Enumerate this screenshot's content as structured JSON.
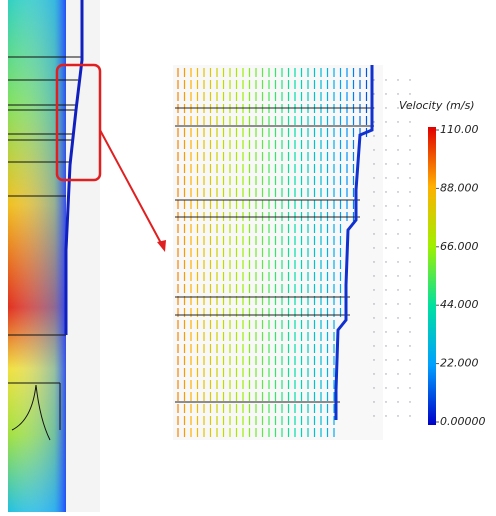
{
  "colorbar": {
    "title": "Velocity (m/s)",
    "ticks": [
      {
        "value": 110,
        "label": "110.00"
      },
      {
        "value": 88,
        "label": "88.000"
      },
      {
        "value": 66,
        "label": "66.000"
      },
      {
        "value": 44,
        "label": "44.000"
      },
      {
        "value": 22,
        "label": "22.000"
      },
      {
        "value": 0,
        "label": "0.00000"
      }
    ]
  }
}
